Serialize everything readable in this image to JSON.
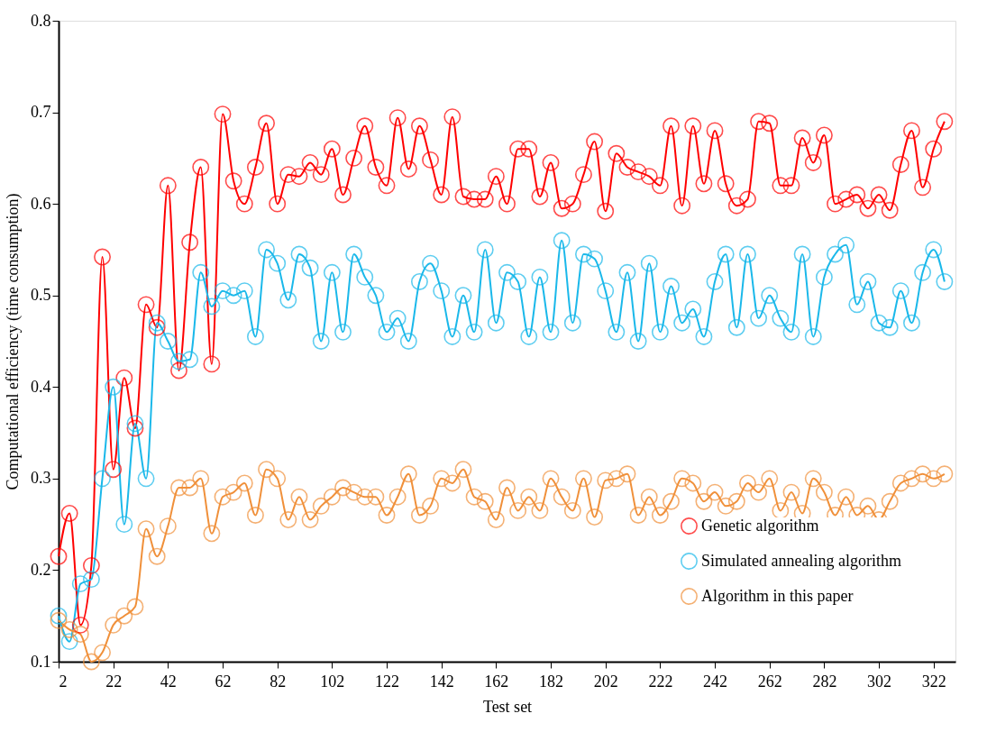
{
  "chart_data": {
    "type": "line",
    "xlabel": "Test set",
    "ylabel": "Computational efficiency (time consumption)",
    "xlim": [
      2,
      330
    ],
    "xticks": [
      2,
      22,
      42,
      62,
      82,
      102,
      122,
      142,
      162,
      182,
      202,
      222,
      242,
      262,
      282,
      302,
      322
    ],
    "ylim": [
      0.1,
      0.8
    ],
    "yticks": [
      0.1,
      0.2,
      0.3,
      0.4,
      0.5,
      0.6,
      0.7,
      0.8
    ],
    "grid": false,
    "legend": "bottom right",
    "marker": "circle",
    "line_style": "solid",
    "x": [
      2,
      6,
      10,
      14,
      18,
      22,
      26,
      30,
      34,
      38,
      42,
      46,
      50,
      54,
      58,
      62,
      66,
      70,
      74,
      78,
      82,
      86,
      90,
      94,
      98,
      102,
      106,
      110,
      114,
      118,
      122,
      126,
      130,
      134,
      138,
      142,
      146,
      150,
      154,
      158,
      162,
      166,
      170,
      174,
      178,
      182,
      186,
      190,
      194,
      198,
      202,
      206,
      210,
      214,
      218,
      222,
      226,
      230,
      234,
      238,
      242,
      246,
      250,
      254,
      258,
      262,
      266,
      270,
      274,
      278,
      282,
      286,
      290,
      294,
      298,
      302,
      306,
      310,
      314,
      318,
      322,
      326
    ],
    "series": [
      {
        "name": "Genetic algorithm",
        "color": "#ff0000",
        "values": [
          0.215,
          0.262,
          0.14,
          0.205,
          0.542,
          0.31,
          0.41,
          0.355,
          0.49,
          0.465,
          0.62,
          0.418,
          0.558,
          0.64,
          0.425,
          0.698,
          0.625,
          0.6,
          0.64,
          0.688,
          0.6,
          0.632,
          0.63,
          0.645,
          0.632,
          0.66,
          0.61,
          0.65,
          0.685,
          0.64,
          0.62,
          0.694,
          0.638,
          0.685,
          0.648,
          0.61,
          0.695,
          0.608,
          0.605,
          0.605,
          0.63,
          0.6,
          0.66,
          0.66,
          0.608,
          0.645,
          0.595,
          0.6,
          0.632,
          0.668,
          0.592,
          0.655,
          0.64,
          0.635,
          0.63,
          0.62,
          0.685,
          0.598,
          0.685,
          0.622,
          0.68,
          0.622,
          0.598,
          0.605,
          0.69,
          0.688,
          0.62,
          0.62,
          0.672,
          0.645,
          0.675,
          0.6,
          0.605,
          0.61,
          0.595,
          0.61,
          0.593,
          0.643,
          0.68,
          0.618,
          0.66,
          0.69
        ]
      },
      {
        "name": "Simulated annealing algorithm",
        "color": "#1ab8ea",
        "values": [
          0.15,
          0.122,
          0.185,
          0.19,
          0.3,
          0.4,
          0.25,
          0.36,
          0.3,
          0.47,
          0.45,
          0.428,
          0.43,
          0.525,
          0.488,
          0.505,
          0.5,
          0.505,
          0.455,
          0.55,
          0.535,
          0.495,
          0.545,
          0.53,
          0.45,
          0.525,
          0.46,
          0.545,
          0.52,
          0.5,
          0.46,
          0.475,
          0.45,
          0.515,
          0.535,
          0.505,
          0.455,
          0.5,
          0.46,
          0.55,
          0.47,
          0.525,
          0.515,
          0.455,
          0.52,
          0.46,
          0.56,
          0.47,
          0.545,
          0.54,
          0.505,
          0.46,
          0.525,
          0.45,
          0.535,
          0.46,
          0.51,
          0.47,
          0.485,
          0.455,
          0.515,
          0.545,
          0.465,
          0.545,
          0.475,
          0.5,
          0.475,
          0.46,
          0.545,
          0.455,
          0.52,
          0.545,
          0.555,
          0.49,
          0.515,
          0.47,
          0.465,
          0.505,
          0.47,
          0.525,
          0.55,
          0.515
        ]
      },
      {
        "name": "Algorithm in this paper",
        "color": "#f0903a",
        "values": [
          0.145,
          0.135,
          0.13,
          0.1,
          0.11,
          0.14,
          0.15,
          0.16,
          0.245,
          0.215,
          0.248,
          0.29,
          0.29,
          0.3,
          0.24,
          0.28,
          0.285,
          0.295,
          0.26,
          0.31,
          0.3,
          0.255,
          0.28,
          0.255,
          0.27,
          0.28,
          0.29,
          0.285,
          0.28,
          0.28,
          0.26,
          0.28,
          0.305,
          0.26,
          0.27,
          0.3,
          0.295,
          0.31,
          0.28,
          0.275,
          0.255,
          0.29,
          0.265,
          0.28,
          0.265,
          0.3,
          0.28,
          0.265,
          0.3,
          0.258,
          0.298,
          0.3,
          0.305,
          0.26,
          0.28,
          0.26,
          0.275,
          0.3,
          0.295,
          0.275,
          0.285,
          0.27,
          0.275,
          0.295,
          0.285,
          0.3,
          0.265,
          0.285,
          0.262,
          0.3,
          0.285,
          0.26,
          0.28,
          0.26,
          0.27,
          0.255,
          0.275,
          0.295,
          0.3,
          0.305,
          0.3,
          0.305
        ]
      }
    ]
  }
}
